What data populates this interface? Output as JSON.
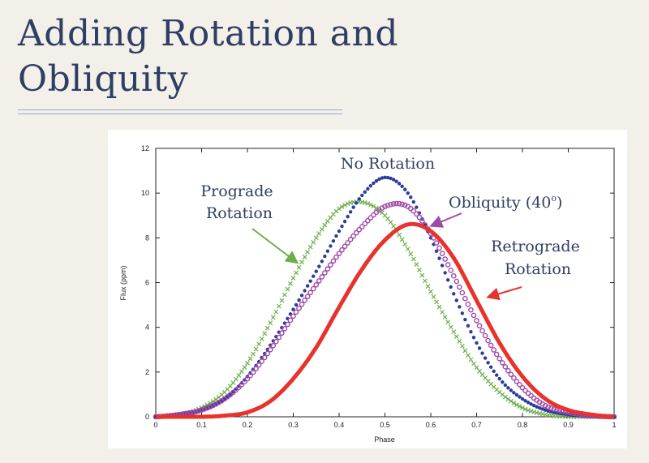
{
  "slide": {
    "title_line1": "Adding Rotation and",
    "title_line2": "Obliquity"
  },
  "chart_data": {
    "type": "scatter",
    "xlabel": "Phase",
    "ylabel": "Flux (ppm)",
    "xlim": [
      0,
      1
    ],
    "ylim": [
      0,
      12
    ],
    "x_ticks": [
      0,
      0.1,
      0.2,
      0.3,
      0.4,
      0.5,
      0.6,
      0.7,
      0.8,
      0.9,
      1
    ],
    "y_ticks": [
      0,
      2,
      4,
      6,
      8,
      10,
      12
    ],
    "grid": false,
    "series": [
      {
        "name": "No Rotation",
        "color": "#2b3d9a",
        "marker": "dot",
        "x": [
          0.0,
          0.05,
          0.1,
          0.15,
          0.2,
          0.25,
          0.3,
          0.35,
          0.4,
          0.45,
          0.5,
          0.55,
          0.6,
          0.65,
          0.7,
          0.75,
          0.8,
          0.85,
          0.9,
          0.95,
          1.0
        ],
        "y": [
          0.0,
          0.1,
          0.3,
          0.8,
          1.8,
          3.2,
          4.8,
          6.5,
          8.3,
          9.9,
          10.7,
          10.0,
          8.0,
          5.5,
          3.3,
          1.7,
          0.8,
          0.3,
          0.1,
          0.0,
          0.0
        ]
      },
      {
        "name": "Prograde Rotation",
        "color": "#6cae4a",
        "marker": "cross",
        "x": [
          0.0,
          0.05,
          0.1,
          0.15,
          0.2,
          0.25,
          0.3,
          0.35,
          0.4,
          0.45,
          0.5,
          0.55,
          0.6,
          0.65,
          0.7,
          0.75,
          0.8,
          0.85,
          0.9,
          0.95,
          1.0
        ],
        "y": [
          0.0,
          0.1,
          0.4,
          1.1,
          2.4,
          4.2,
          6.2,
          8.0,
          9.3,
          9.6,
          9.0,
          7.5,
          5.6,
          3.8,
          2.2,
          1.1,
          0.4,
          0.1,
          0.0,
          0.0,
          0.0
        ]
      },
      {
        "name": "Obliquity (40°)",
        "color": "#a04aa8",
        "marker": "circle",
        "x": [
          0.0,
          0.05,
          0.1,
          0.15,
          0.2,
          0.25,
          0.3,
          0.35,
          0.4,
          0.45,
          0.5,
          0.55,
          0.6,
          0.65,
          0.7,
          0.75,
          0.8,
          0.85,
          0.9,
          0.95,
          1.0
        ],
        "y": [
          0.0,
          0.1,
          0.3,
          0.8,
          1.7,
          3.0,
          4.5,
          5.9,
          7.3,
          8.5,
          9.4,
          9.4,
          8.2,
          6.3,
          4.3,
          2.6,
          1.3,
          0.5,
          0.2,
          0.05,
          0.0
        ]
      },
      {
        "name": "Retrograde Rotation",
        "color": "#e8322c",
        "marker": "line",
        "x": [
          0.0,
          0.05,
          0.1,
          0.15,
          0.2,
          0.25,
          0.3,
          0.35,
          0.4,
          0.45,
          0.5,
          0.55,
          0.6,
          0.65,
          0.7,
          0.75,
          0.8,
          0.85,
          0.9,
          0.95,
          1.0
        ],
        "y": [
          0.0,
          0.0,
          0.0,
          0.05,
          0.2,
          0.7,
          1.7,
          3.1,
          4.9,
          6.6,
          7.9,
          8.6,
          8.3,
          7.1,
          5.2,
          3.3,
          1.8,
          0.8,
          0.3,
          0.1,
          0.0
        ]
      }
    ],
    "annotations": [
      {
        "id": "no-rotation",
        "lines": [
          "No Rotation"
        ]
      },
      {
        "id": "prograde",
        "lines": [
          "Prograde",
          "Rotation"
        ]
      },
      {
        "id": "obliquity",
        "lines": [
          "Obliquity (40",
          "o",
          ")"
        ]
      },
      {
        "id": "retrograde",
        "lines": [
          "Retrograde",
          "Rotation"
        ]
      }
    ]
  }
}
